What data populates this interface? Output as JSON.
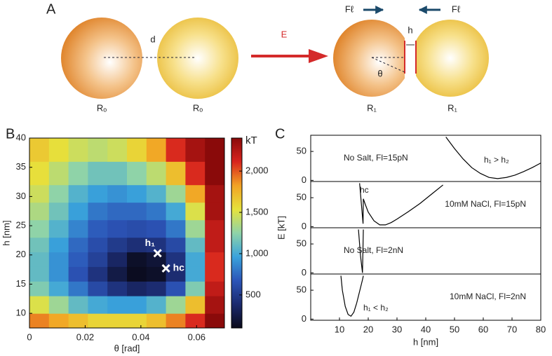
{
  "diagram": {
    "panel_label": "A",
    "distance": "d",
    "field": "E",
    "radius_before": [
      "Rₒ",
      "Rₒ"
    ],
    "radius_after": [
      "R₁",
      "R₁"
    ],
    "force": [
      "Fℓ",
      "Fℓ"
    ],
    "gap": "h",
    "angle": "θ"
  },
  "chart_data": [
    {
      "type": "heatmap",
      "panel_label": "B",
      "xlabel": "θ [rad]",
      "ylabel": "h [nm]",
      "colorbar_label": "kT",
      "xlim": [
        0,
        0.07
      ],
      "ylim": [
        7.5,
        40
      ],
      "xticks": [
        0,
        0.02,
        0.04,
        0.06
      ],
      "yticks": [
        10,
        15,
        20,
        25,
        30,
        35,
        40
      ],
      "xbins": [
        0,
        0.007,
        0.014,
        0.021,
        0.028,
        0.035,
        0.042,
        0.049,
        0.056,
        0.063,
        0.07
      ],
      "ybins": [
        7.5,
        10,
        13,
        15.5,
        18,
        20.5,
        23,
        26,
        29,
        32,
        36,
        40
      ],
      "z": [
        [
          1900,
          1800,
          1700,
          1600,
          1600,
          1600,
          1700,
          1900,
          2100,
          2400
        ],
        [
          1500,
          1300,
          1100,
          1000,
          950,
          950,
          1050,
          1300,
          1700,
          2300
        ],
        [
          1200,
          1000,
          800,
          600,
          450,
          350,
          400,
          650,
          1200,
          2200
        ],
        [
          1100,
          900,
          650,
          450,
          250,
          120,
          150,
          400,
          1000,
          2100
        ],
        [
          1100,
          900,
          700,
          550,
          350,
          150,
          200,
          450,
          1000,
          2100
        ],
        [
          1150,
          950,
          750,
          620,
          500,
          420,
          450,
          600,
          1100,
          2200
        ],
        [
          1250,
          1050,
          850,
          700,
          650,
          620,
          650,
          800,
          1300,
          2200
        ],
        [
          1350,
          1150,
          950,
          800,
          750,
          750,
          800,
          1000,
          1500,
          2300
        ],
        [
          1450,
          1250,
          1050,
          950,
          900,
          950,
          1050,
          1300,
          1800,
          2300
        ],
        [
          1550,
          1400,
          1250,
          1150,
          1150,
          1250,
          1400,
          1700,
          2100,
          2400
        ],
        [
          1650,
          1550,
          1450,
          1400,
          1450,
          1600,
          1800,
          2100,
          2300,
          2400
        ]
      ],
      "zlim": [
        100,
        2400
      ],
      "zticks": [
        500,
        {
          "value": 1000,
          "label": "1,000"
        },
        {
          "value": 1500,
          "label": "1,500"
        },
        {
          "value": 2000,
          "label": "2,000"
        }
      ],
      "colormap": [
        "#0a0a1a",
        "#1b2a6e",
        "#2c55b8",
        "#3aa3dc",
        "#8fd3a8",
        "#e6e23c",
        "#f2a324",
        "#d8241e",
        "#8a0a0a"
      ],
      "markers": [
        {
          "label": "h₁",
          "x": 0.046,
          "y": 20.3
        },
        {
          "label": "hc",
          "x": 0.049,
          "y": 17.7
        }
      ]
    },
    {
      "type": "line",
      "panel_label": "C",
      "xlabel": "h [nm]",
      "ylabel": "E [kT]",
      "color": "#000000",
      "xlim": [
        0,
        80
      ],
      "ylim": [
        -2,
        78
      ],
      "xticks": [
        10,
        20,
        30,
        40,
        50,
        60,
        70,
        80
      ],
      "yticks": [
        0,
        50
      ],
      "subplots": [
        {
          "text": "No Salt, Fl=15pN",
          "note": "h₁ > h₂",
          "x": [
            47,
            50,
            53,
            56,
            59,
            62,
            65,
            68,
            71,
            74,
            77,
            80
          ],
          "values": [
            75,
            55,
            37,
            22,
            12,
            5,
            3,
            5,
            9,
            15,
            22,
            30
          ]
        },
        {
          "text": "10mM NaCl, Fl=15pN",
          "note": "hc",
          "x": [
            17,
            17.6,
            18.2,
            18.3,
            19,
            20,
            22,
            24,
            26,
            28,
            30,
            34,
            38,
            42,
            46
          ],
          "values": [
            75,
            40,
            5,
            48,
            38,
            25,
            10,
            3,
            3,
            7,
            13,
            26,
            40,
            56,
            72
          ]
        },
        {
          "text": "No Salt, Fl=2nN",
          "x": [
            16.6,
            17.3,
            18,
            18.3
          ],
          "values": [
            75,
            30,
            0,
            75
          ]
        },
        {
          "text": "10mM NaCl, Fl=2nN",
          "note": "h₁ < h₂",
          "x": [
            10.5,
            11,
            12,
            13,
            14,
            15,
            16,
            17,
            18,
            18.3
          ],
          "values": [
            75,
            50,
            22,
            8,
            5,
            12,
            28,
            48,
            68,
            75
          ]
        }
      ]
    }
  ]
}
